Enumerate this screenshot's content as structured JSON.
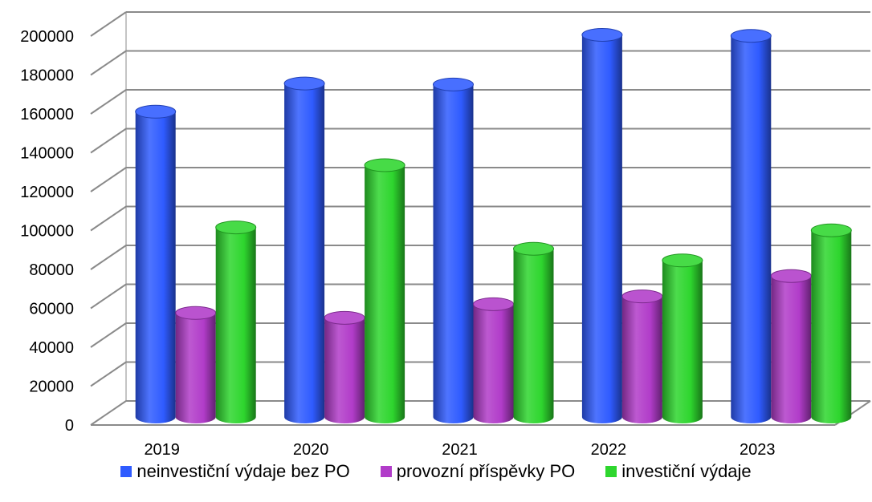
{
  "chart_data": {
    "type": "bar",
    "variant": "3d-cylinder",
    "categories": [
      "2019",
      "2020",
      "2021",
      "2022",
      "2023"
    ],
    "series": [
      {
        "name": "neinvestiční výdaje bez PO",
        "color": "#2F5BFF",
        "values": [
          157000,
          171500,
          171000,
          196500,
          196000
        ]
      },
      {
        "name": "provozní příspěvky PO",
        "color": "#B13CC9",
        "values": [
          53500,
          51000,
          58000,
          62000,
          72500
        ]
      },
      {
        "name": "investiční výdaje",
        "color": "#2ED62E",
        "values": [
          97500,
          129500,
          86500,
          80500,
          96000
        ]
      }
    ],
    "y_ticks": [
      "0",
      "20000",
      "40000",
      "60000",
      "80000",
      "100000",
      "120000",
      "140000",
      "160000",
      "180000",
      "200000"
    ],
    "ylim": [
      0,
      200000
    ],
    "grid": true,
    "legend_position": "bottom"
  }
}
